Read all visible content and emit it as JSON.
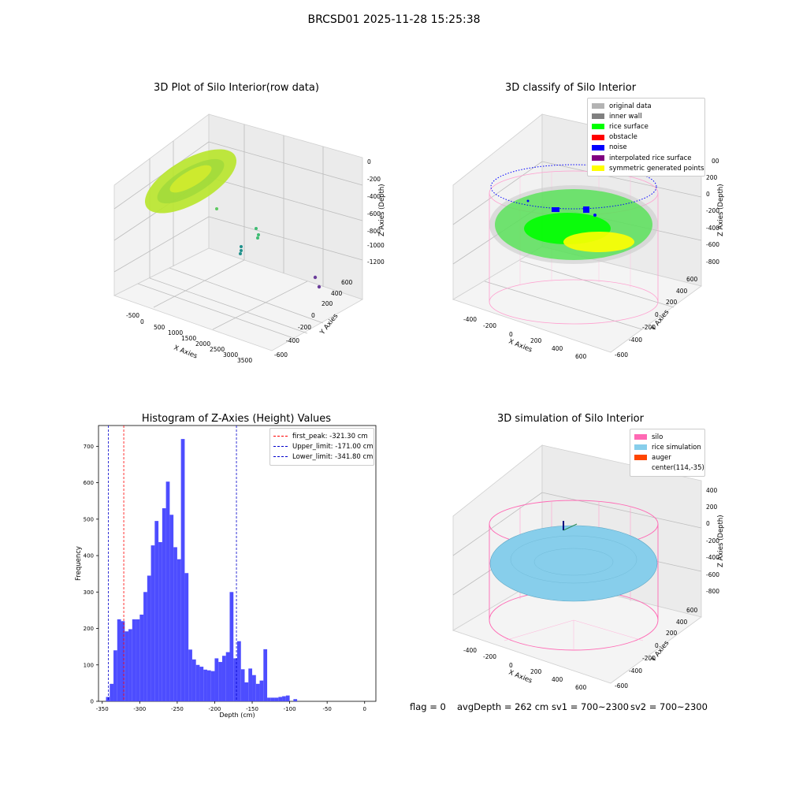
{
  "figure": {
    "suptitle": "BRCSD01 2025-11-28 15:25:38"
  },
  "panels": {
    "raw": {
      "title": "3D Plot of Silo Interior(row data)",
      "x_label": "X Axies",
      "y_label": "Y Axies",
      "z_label": "Z Axies (Depth)",
      "x_ticks": [
        "-500",
        "0",
        "500",
        "1000",
        "1500",
        "2000",
        "2500",
        "3000",
        "3500"
      ],
      "y_ticks": [
        "-600",
        "-400",
        "-200",
        "0",
        "200",
        "400",
        "600"
      ],
      "z_ticks": [
        "0",
        "-200",
        "-400",
        "-600",
        "-800",
        "-1000",
        "-1200"
      ]
    },
    "classify": {
      "title": "3D classify of Silo Interior",
      "x_label": "X Axies",
      "y_label": "Y Axies",
      "z_label": "Z Axies (Depth)",
      "x_ticks": [
        "-400",
        "-200",
        "0",
        "200",
        "400",
        "600"
      ],
      "y_ticks": [
        "-600",
        "-400",
        "-200",
        "0",
        "200",
        "400",
        "600"
      ],
      "z_ticks": [
        "200",
        "0",
        "-200",
        "-400",
        "-600",
        "-800"
      ],
      "z_top_partial": "00",
      "legend": [
        {
          "label": "original data",
          "color": "#b3b3b3"
        },
        {
          "label": "inner wall",
          "color": "#808080"
        },
        {
          "label": "rice surface",
          "color": "#00ff00"
        },
        {
          "label": "obstacle",
          "color": "#ff0000"
        },
        {
          "label": "noise",
          "color": "#0000ff"
        },
        {
          "label": "interpolated rice surface",
          "color": "#800080"
        },
        {
          "label": "symmetric generated points",
          "color": "#ffff00"
        }
      ]
    },
    "simulation": {
      "title": "3D simulation of Silo Interior",
      "x_label": "X Axies",
      "y_label": "Y Axies",
      "z_label": "Z Axies (Depth)",
      "x_ticks": [
        "-400",
        "-200",
        "0",
        "200",
        "400",
        "600"
      ],
      "y_ticks": [
        "-600",
        "-400",
        "-200",
        "0",
        "200",
        "400",
        "600"
      ],
      "z_ticks": [
        "400",
        "200",
        "0",
        "-200",
        "-400",
        "-600",
        "-800"
      ],
      "legend": [
        {
          "label": "silo",
          "color": "#ff69b4"
        },
        {
          "label": "rice simulation",
          "color": "#87ceeb"
        },
        {
          "label": "auger",
          "color": "#ff4500"
        },
        {
          "label": "center(114,-35)",
          "color": ""
        }
      ]
    }
  },
  "footer": {
    "flag": "flag = 0",
    "avg": "avgDepth = 262 cm",
    "sv1": "sv1 = 700~2300",
    "sv2": "sv2 = 700~2300"
  },
  "chart_data": [
    {
      "type": "histogram",
      "title": "Histogram of Z-Axies (Height) Values",
      "xlabel": "Depth (cm)",
      "ylabel": "Frequency",
      "xlim": [
        -355,
        15
      ],
      "ylim": [
        0,
        757
      ],
      "x_ticks": [
        -350,
        -300,
        -250,
        -200,
        -150,
        -100,
        -50,
        0
      ],
      "y_ticks": [
        0,
        100,
        200,
        300,
        400,
        500,
        600,
        700
      ],
      "bar_color": "#4d4dff",
      "bins": [
        {
          "x0": -345.0,
          "x1": -340.0,
          "count": 12
        },
        {
          "x0": -340.0,
          "x1": -335.0,
          "count": 48
        },
        {
          "x0": -335.0,
          "x1": -330.0,
          "count": 140
        },
        {
          "x0": -330.0,
          "x1": -325.0,
          "count": 225
        },
        {
          "x0": -325.0,
          "x1": -320.0,
          "count": 220
        },
        {
          "x0": -320.0,
          "x1": -315.0,
          "count": 192
        },
        {
          "x0": -315.0,
          "x1": -310.0,
          "count": 198
        },
        {
          "x0": -310.0,
          "x1": -305.0,
          "count": 225
        },
        {
          "x0": -305.0,
          "x1": -300.0,
          "count": 225
        },
        {
          "x0": -300.0,
          "x1": -295.0,
          "count": 238
        },
        {
          "x0": -295.0,
          "x1": -290.0,
          "count": 300
        },
        {
          "x0": -290.0,
          "x1": -285.0,
          "count": 345
        },
        {
          "x0": -285.0,
          "x1": -280.0,
          "count": 428
        },
        {
          "x0": -280.0,
          "x1": -275.0,
          "count": 495
        },
        {
          "x0": -275.0,
          "x1": -270.0,
          "count": 437
        },
        {
          "x0": -270.0,
          "x1": -265.0,
          "count": 530
        },
        {
          "x0": -265.0,
          "x1": -260.0,
          "count": 603
        },
        {
          "x0": -260.0,
          "x1": -255.0,
          "count": 512
        },
        {
          "x0": -255.0,
          "x1": -250.0,
          "count": 423
        },
        {
          "x0": -250.0,
          "x1": -245.0,
          "count": 390
        },
        {
          "x0": -245.0,
          "x1": -240.0,
          "count": 720
        },
        {
          "x0": -240.0,
          "x1": -235.0,
          "count": 352
        },
        {
          "x0": -235.0,
          "x1": -230.0,
          "count": 142
        },
        {
          "x0": -230.0,
          "x1": -225.0,
          "count": 115
        },
        {
          "x0": -225.0,
          "x1": -220.0,
          "count": 100
        },
        {
          "x0": -220.0,
          "x1": -215.0,
          "count": 95
        },
        {
          "x0": -215.0,
          "x1": -210.0,
          "count": 87
        },
        {
          "x0": -210.0,
          "x1": -205.0,
          "count": 85
        },
        {
          "x0": -205.0,
          "x1": -200.0,
          "count": 83
        },
        {
          "x0": -200.0,
          "x1": -195.0,
          "count": 118
        },
        {
          "x0": -195.0,
          "x1": -190.0,
          "count": 108
        },
        {
          "x0": -190.0,
          "x1": -185.0,
          "count": 125
        },
        {
          "x0": -185.0,
          "x1": -180.0,
          "count": 135
        },
        {
          "x0": -180.0,
          "x1": -175.0,
          "count": 300
        },
        {
          "x0": -175.0,
          "x1": -170.0,
          "count": 118
        },
        {
          "x0": -170.0,
          "x1": -165.0,
          "count": 165
        },
        {
          "x0": -165.0,
          "x1": -160.0,
          "count": 88
        },
        {
          "x0": -160.0,
          "x1": -155.0,
          "count": 52
        },
        {
          "x0": -155.0,
          "x1": -150.0,
          "count": 90
        },
        {
          "x0": -150.0,
          "x1": -145.0,
          "count": 72
        },
        {
          "x0": -145.0,
          "x1": -140.0,
          "count": 48
        },
        {
          "x0": -140.0,
          "x1": -135.0,
          "count": 57
        },
        {
          "x0": -135.0,
          "x1": -130.0,
          "count": 143
        },
        {
          "x0": -130.0,
          "x1": -125.0,
          "count": 10
        },
        {
          "x0": -125.0,
          "x1": -120.0,
          "count": 10
        },
        {
          "x0": -120.0,
          "x1": -115.0,
          "count": 10
        },
        {
          "x0": -115.0,
          "x1": -110.0,
          "count": 12
        },
        {
          "x0": -110.0,
          "x1": -105.0,
          "count": 14
        },
        {
          "x0": -105.0,
          "x1": -100.0,
          "count": 16
        },
        {
          "x0": -100.0,
          "x1": -95.0,
          "count": 0
        },
        {
          "x0": -95.0,
          "x1": -90.0,
          "count": 6
        }
      ],
      "vlines": [
        {
          "x": -321.3,
          "color": "#ff0000",
          "label": "first_peak: -321.30 cm"
        },
        {
          "x": -171.0,
          "color": "#0000cc",
          "label": "Upper_limit: -171.00 cm"
        },
        {
          "x": -341.8,
          "color": "#0000cc",
          "label": "Lower_limit: -341.80 cm"
        }
      ],
      "legend_position": "upper right"
    }
  ]
}
